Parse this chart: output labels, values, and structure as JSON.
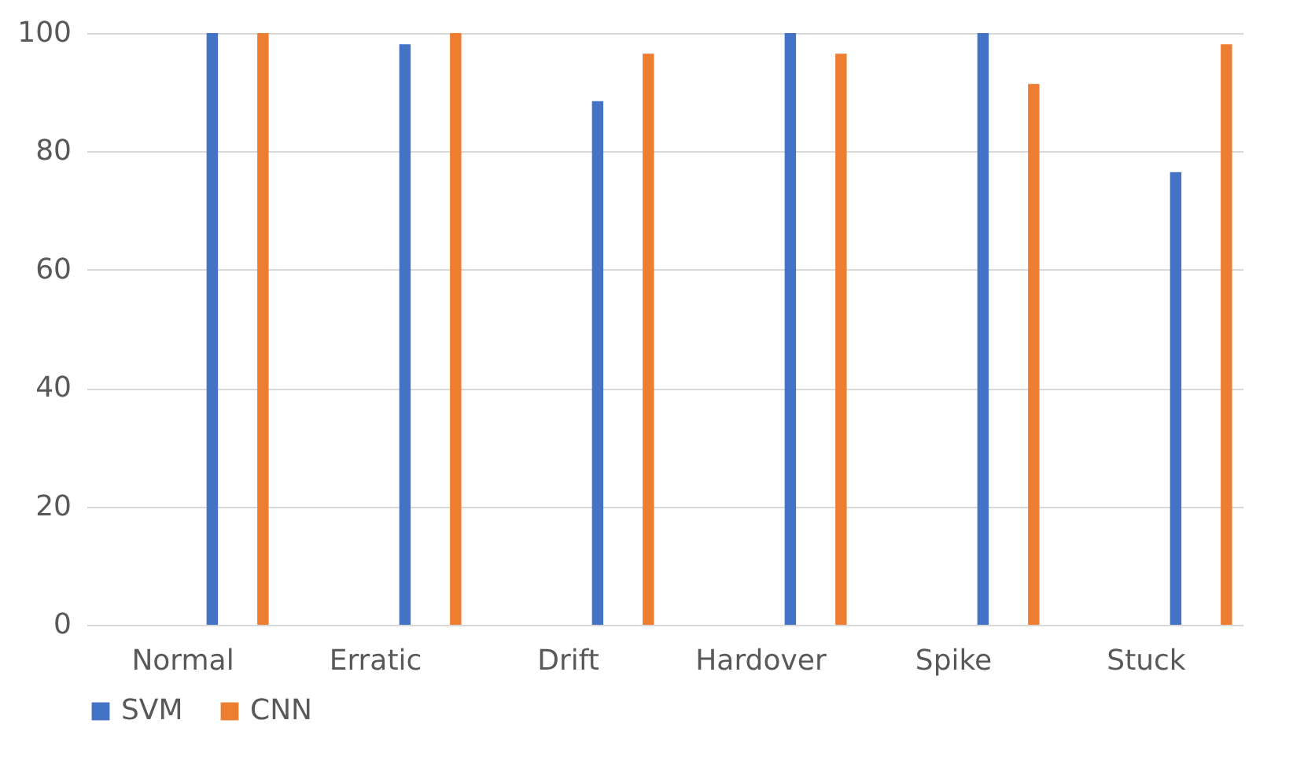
{
  "chart_data": {
    "type": "bar",
    "categories": [
      "Normal",
      "Erratic",
      "Drift",
      "Hardover",
      "Spike",
      "Stuck"
    ],
    "series": [
      {
        "name": "SVM",
        "color": "#4472c4",
        "values": [
          100,
          98.1,
          88.5,
          100,
          100,
          76.5
        ]
      },
      {
        "name": "CNN",
        "color": "#ed7d31",
        "values": [
          100,
          100,
          96.5,
          96.5,
          91.4,
          98.1
        ]
      }
    ],
    "ylim": [
      0,
      100
    ],
    "yticks": [
      0,
      20,
      40,
      60,
      80,
      100
    ],
    "grid": "y",
    "legend": "bottom"
  }
}
